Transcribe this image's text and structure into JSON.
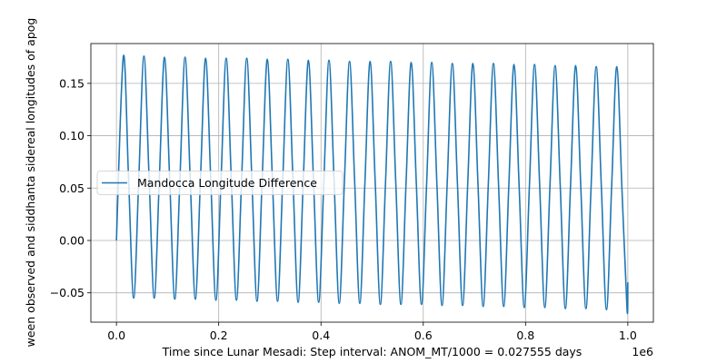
{
  "chart_data": {
    "type": "line",
    "xlabel": "Time since Lunar Mesadi: Step interval: ANOM_MT/1000 = 0.027555 days",
    "ylabel": "ween observed and siddhanta sidereal longitudes of apog",
    "x_offset_label": "1e6",
    "xlim": [
      -50000,
      1050000
    ],
    "ylim": [
      -0.078,
      0.188
    ],
    "xticks": [
      {
        "value": 0,
        "label": "0.0"
      },
      {
        "value": 200000,
        "label": "0.2"
      },
      {
        "value": 400000,
        "label": "0.4"
      },
      {
        "value": 600000,
        "label": "0.6"
      },
      {
        "value": 800000,
        "label": "0.8"
      },
      {
        "value": 1000000,
        "label": "1.0"
      }
    ],
    "yticks": [
      {
        "value": -0.05,
        "label": "−0.05"
      },
      {
        "value": 0,
        "label": "0.00"
      },
      {
        "value": 0.05,
        "label": "0.05"
      },
      {
        "value": 0.1,
        "label": "0.10"
      },
      {
        "value": 0.15,
        "label": "0.15"
      }
    ],
    "grid": true,
    "legend_loc": "center left",
    "x": [
      0,
      13600,
      23650,
      33700,
      43750,
      53800,
      63850,
      73900,
      83950,
      94000,
      104050,
      114100,
      124150,
      134200,
      144250,
      154300,
      164350,
      174400,
      184450,
      194500,
      204550,
      214600,
      224650,
      234700,
      244750,
      254800,
      264850,
      274900,
      284950,
      295000,
      305050,
      315100,
      325150,
      335200,
      345250,
      355300,
      365350,
      375400,
      385450,
      395500,
      405550,
      415600,
      425650,
      435700,
      445750,
      455800,
      465850,
      475900,
      485950,
      496000,
      506050,
      516100,
      526150,
      536200,
      546250,
      556300,
      566350,
      576400,
      586450,
      596500,
      606550,
      616600,
      626650,
      636700,
      646750,
      656800,
      666850,
      676900,
      686950,
      697000,
      707050,
      717100,
      727150,
      737200,
      747250,
      757300,
      767350,
      777400,
      787450,
      797500,
      807550,
      817600,
      827650,
      837700,
      847750,
      857800,
      867850,
      877900,
      887950,
      898000,
      908050,
      918100,
      928150,
      938200,
      948250,
      958300,
      968350,
      978400,
      988450,
      998500,
      1000000
    ],
    "series": [
      {
        "name": "Mandocca Longitude Difference",
        "color": "#1f77b4",
        "values": [
          0,
          0.176,
          0.06,
          -0.055,
          0.06,
          0.176,
          0.06,
          -0.055,
          0.06,
          0.175,
          0.059,
          -0.056,
          0.059,
          0.175,
          0.059,
          -0.056,
          0.059,
          0.174,
          0.058,
          -0.057,
          0.058,
          0.174,
          0.058,
          -0.057,
          0.058,
          0.174,
          0.058,
          -0.058,
          0.058,
          0.173,
          0.057,
          -0.058,
          0.057,
          0.173,
          0.057,
          -0.059,
          0.057,
          0.172,
          0.056,
          -0.059,
          0.056,
          0.172,
          0.056,
          -0.06,
          0.056,
          0.171,
          0.056,
          -0.06,
          0.056,
          0.171,
          0.055,
          -0.061,
          0.055,
          0.171,
          0.055,
          -0.061,
          0.055,
          0.17,
          0.054,
          -0.061,
          0.054,
          0.17,
          0.054,
          -0.062,
          0.054,
          0.169,
          0.054,
          -0.062,
          0.054,
          0.169,
          0.053,
          -0.063,
          0.053,
          0.169,
          0.053,
          -0.063,
          0.053,
          0.168,
          0.052,
          -0.064,
          0.052,
          0.168,
          0.052,
          -0.064,
          0.052,
          0.167,
          0.052,
          -0.065,
          0.052,
          0.167,
          0.051,
          -0.065,
          0.051,
          0.166,
          0.051,
          -0.066,
          0.051,
          0.166,
          0.05,
          -0.066,
          -0.04
        ]
      }
    ]
  }
}
